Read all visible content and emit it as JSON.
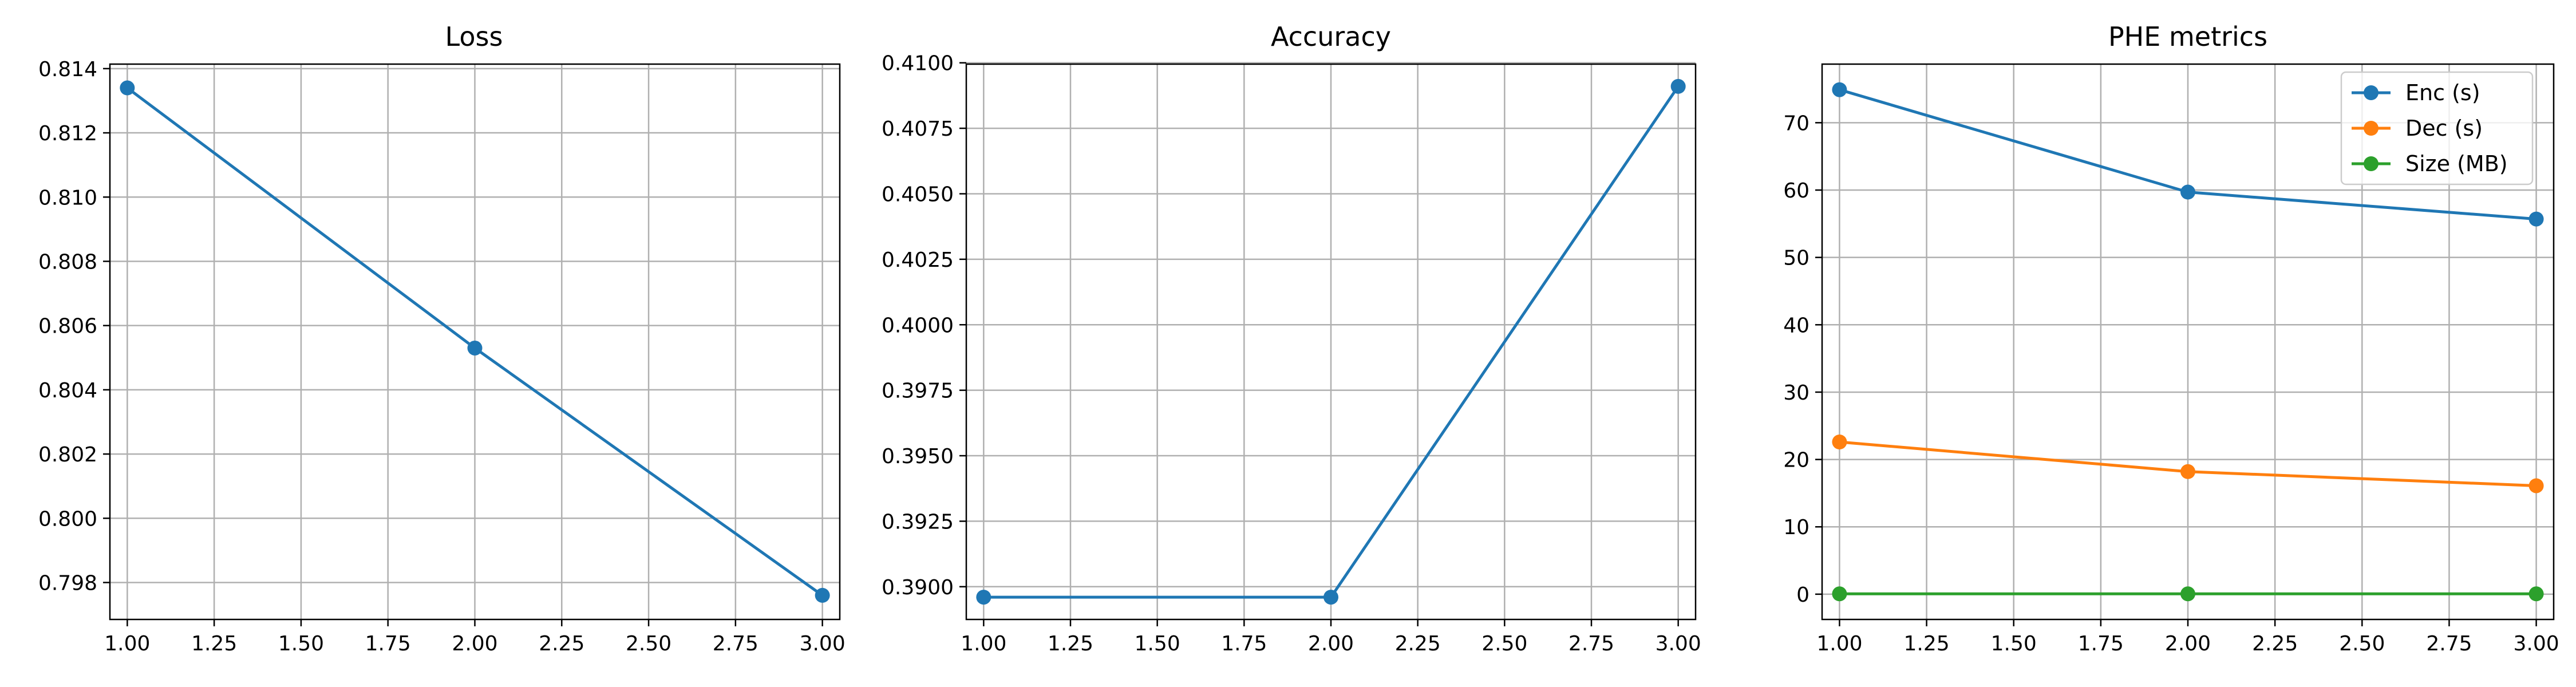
{
  "chart_data": [
    {
      "type": "line",
      "title": "Loss",
      "xlabel": "",
      "ylabel": "",
      "x": [
        1.0,
        2.0,
        3.0
      ],
      "xlim": [
        0.95,
        3.05
      ],
      "ylim": [
        0.79685,
        0.81414
      ],
      "xticks": [
        1.0,
        1.25,
        1.5,
        1.75,
        2.0,
        2.25,
        2.5,
        2.75,
        3.0
      ],
      "xtick_labels": [
        "1.00",
        "1.25",
        "1.50",
        "1.75",
        "2.00",
        "2.25",
        "2.50",
        "2.75",
        "3.00"
      ],
      "yticks": [
        0.798,
        0.8,
        0.802,
        0.804,
        0.806,
        0.808,
        0.81,
        0.812,
        0.814
      ],
      "ytick_labels": [
        "0.798",
        "0.800",
        "0.802",
        "0.804",
        "0.806",
        "0.808",
        "0.810",
        "0.812",
        "0.814"
      ],
      "grid": true,
      "series": [
        {
          "name": "Loss",
          "values": [
            0.8134,
            0.8053,
            0.7976
          ],
          "color": "#1f77b4"
        }
      ]
    },
    {
      "type": "line",
      "title": "Accuracy",
      "xlabel": "",
      "ylabel": "",
      "x": [
        1.0,
        2.0,
        3.0
      ],
      "xlim": [
        0.95,
        3.05
      ],
      "ylim": [
        0.38875,
        0.40995
      ],
      "xticks": [
        1.0,
        1.25,
        1.5,
        1.75,
        2.0,
        2.25,
        2.5,
        2.75,
        3.0
      ],
      "xtick_labels": [
        "1.00",
        "1.25",
        "1.50",
        "1.75",
        "2.00",
        "2.25",
        "2.50",
        "2.75",
        "3.00"
      ],
      "yticks": [
        0.39,
        0.3925,
        0.395,
        0.3975,
        0.4,
        0.4025,
        0.405,
        0.4075,
        0.41
      ],
      "ytick_labels": [
        "0.3900",
        "0.3925",
        "0.3950",
        "0.3975",
        "0.4000",
        "0.4025",
        "0.4050",
        "0.4075",
        "0.4100"
      ],
      "grid": true,
      "series": [
        {
          "name": "Accuracy",
          "values": [
            0.3896,
            0.3896,
            0.4091
          ],
          "color": "#1f77b4"
        }
      ]
    },
    {
      "type": "line",
      "title": "PHE metrics",
      "xlabel": "",
      "ylabel": "",
      "x": [
        1.0,
        2.0,
        3.0
      ],
      "xlim": [
        0.95,
        3.05
      ],
      "ylim": [
        -3.75,
        78.7
      ],
      "xticks": [
        1.0,
        1.25,
        1.5,
        1.75,
        2.0,
        2.25,
        2.5,
        2.75,
        3.0
      ],
      "xtick_labels": [
        "1.00",
        "1.25",
        "1.50",
        "1.75",
        "2.00",
        "2.25",
        "2.50",
        "2.75",
        "3.00"
      ],
      "yticks": [
        0,
        10,
        20,
        30,
        40,
        50,
        60,
        70
      ],
      "ytick_labels": [
        "0",
        "10",
        "20",
        "30",
        "40",
        "50",
        "60",
        "70"
      ],
      "grid": true,
      "legend_position": "top-right",
      "series": [
        {
          "name": "Enc (s)",
          "values": [
            74.9,
            59.7,
            55.7
          ],
          "color": "#1f77b4"
        },
        {
          "name": "Dec (s)",
          "values": [
            22.6,
            18.2,
            16.1
          ],
          "color": "#ff7f0e"
        },
        {
          "name": "Size (MB)",
          "values": [
            0.05,
            0.05,
            0.05
          ],
          "color": "#2ca02c"
        }
      ]
    }
  ]
}
